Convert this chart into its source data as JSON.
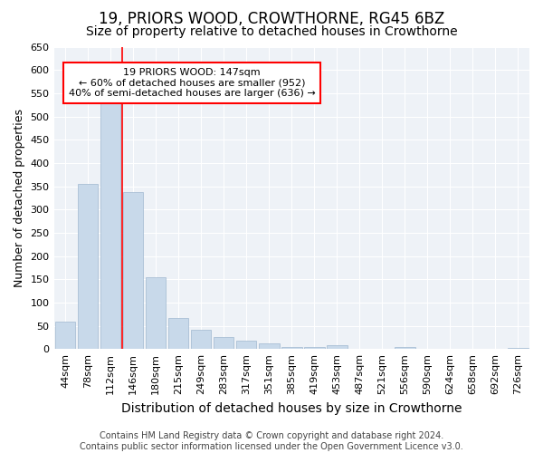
{
  "title1": "19, PRIORS WOOD, CROWTHORNE, RG45 6BZ",
  "title2": "Size of property relative to detached houses in Crowthorne",
  "xlabel": "Distribution of detached houses by size in Crowthorne",
  "ylabel": "Number of detached properties",
  "footer1": "Contains HM Land Registry data © Crown copyright and database right 2024.",
  "footer2": "Contains public sector information licensed under the Open Government Licence v3.0.",
  "categories": [
    "44sqm",
    "78sqm",
    "112sqm",
    "146sqm",
    "180sqm",
    "215sqm",
    "249sqm",
    "283sqm",
    "317sqm",
    "351sqm",
    "385sqm",
    "419sqm",
    "453sqm",
    "487sqm",
    "521sqm",
    "556sqm",
    "590sqm",
    "624sqm",
    "658sqm",
    "692sqm",
    "726sqm"
  ],
  "values": [
    58,
    355,
    540,
    338,
    155,
    67,
    42,
    25,
    18,
    12,
    5,
    5,
    8,
    0,
    0,
    4,
    0,
    0,
    0,
    0,
    2
  ],
  "bar_color": "#c8d9ea",
  "bar_edge_color": "#a0b8d0",
  "annotation_text": "19 PRIORS WOOD: 147sqm\n← 60% of detached houses are smaller (952)\n40% of semi-detached houses are larger (636) →",
  "annotation_box_color": "white",
  "annotation_box_edge_color": "red",
  "vline_color": "red",
  "ylim": [
    0,
    650
  ],
  "yticks": [
    0,
    50,
    100,
    150,
    200,
    250,
    300,
    350,
    400,
    450,
    500,
    550,
    600,
    650
  ],
  "bg_color": "#ffffff",
  "plot_bg_color": "#eef2f7",
  "grid_color": "white",
  "title1_fontsize": 12,
  "title2_fontsize": 10,
  "xlabel_fontsize": 10,
  "ylabel_fontsize": 9,
  "tick_fontsize": 8,
  "annotation_fontsize": 8,
  "footer_fontsize": 7
}
